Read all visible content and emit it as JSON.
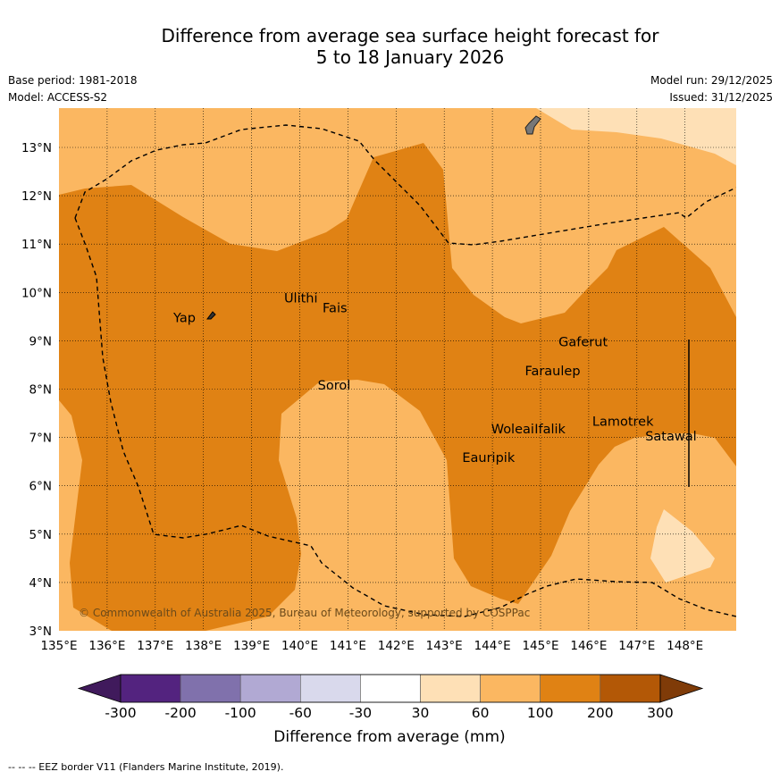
{
  "title": {
    "line1": "Difference from average sea surface height forecast for",
    "line2": "5 to 18 January 2026"
  },
  "meta_left": {
    "base_period": "Base period: 1981-2018",
    "model": "Model: ACCESS-S2"
  },
  "meta_right": {
    "model_run": "Model run: 29/12/2025",
    "issued": "Issued: 31/12/2025"
  },
  "map": {
    "lon_range": [
      135,
      149
    ],
    "lat_range": [
      3,
      13.8
    ],
    "lon_ticks": [
      "135°E",
      "136°E",
      "137°E",
      "138°E",
      "139°E",
      "140°E",
      "141°E",
      "142°E",
      "143°E",
      "144°E",
      "145°E",
      "146°E",
      "147°E",
      "148°E"
    ],
    "lat_ticks": [
      "13°N",
      "12°N",
      "11°N",
      "10°N",
      "9°N",
      "8°N",
      "7°N",
      "6°N",
      "5°N",
      "4°N",
      "3°N"
    ],
    "places": [
      {
        "name": "Yap",
        "lon": 137.3,
        "lat": 9.5
      },
      {
        "name": "Ulithi",
        "lon": 139.6,
        "lat": 9.9
      },
      {
        "name": "Fais",
        "lon": 140.4,
        "lat": 9.7
      },
      {
        "name": "Gaferut",
        "lon": 145.3,
        "lat": 9.0
      },
      {
        "name": "Faraulep",
        "lon": 144.6,
        "lat": 8.4
      },
      {
        "name": "Sorol",
        "lon": 140.3,
        "lat": 8.1
      },
      {
        "name": "Lamotrek",
        "lon": 146.0,
        "lat": 7.35
      },
      {
        "name": "Woleai",
        "lon": 143.9,
        "lat": 7.2
      },
      {
        "name": "Ifalik",
        "lon": 144.8,
        "lat": 7.2
      },
      {
        "name": "Satawal",
        "lon": 147.1,
        "lat": 7.05
      },
      {
        "name": "Eauripik",
        "lon": 143.3,
        "lat": 6.6
      }
    ],
    "copyright": "© Commonwealth of Australia 2025, Bureau of Meteorology, supported by COSPPac"
  },
  "colorbar": {
    "ticks": [
      "-300",
      "-200",
      "-100",
      "-60",
      "-30",
      "30",
      "60",
      "100",
      "200",
      "300"
    ],
    "colors": [
      "#401a5c",
      "#53237f",
      "#8071ac",
      "#b1a9d3",
      "#d9d9ec",
      "#ffffff",
      "#fee0b6",
      "#fbb761",
      "#e08214",
      "#b35806",
      "#7f3b08"
    ],
    "label": "Difference from average (mm)"
  },
  "footnote": "--  --  -- EEZ border V11 (Flanders Marine Institute, 2019)."
}
